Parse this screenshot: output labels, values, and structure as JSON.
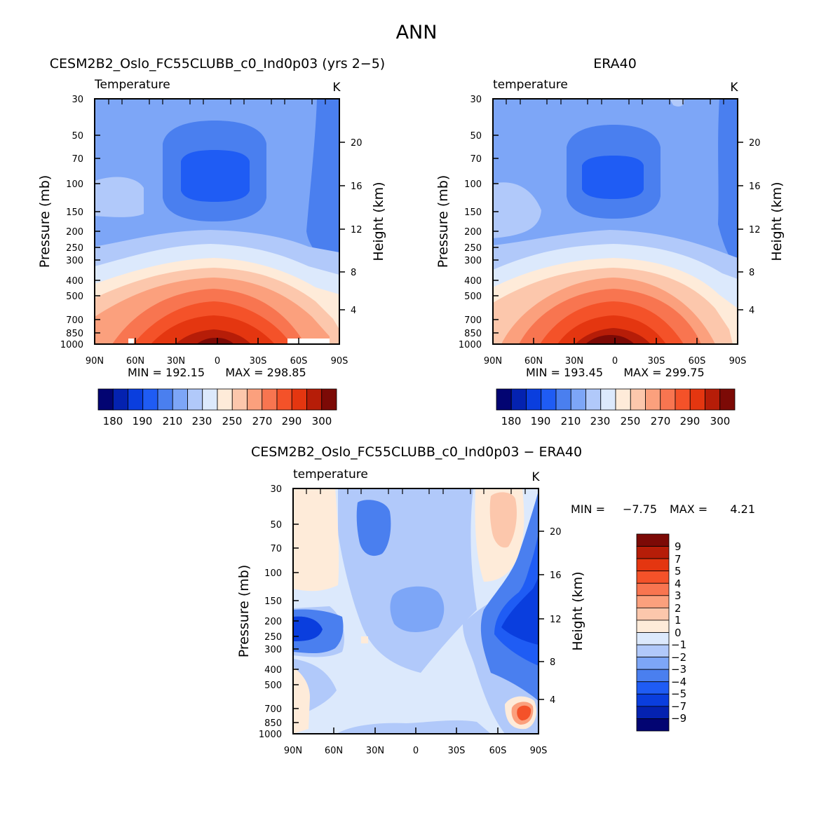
{
  "figure_title": "ANN",
  "chart_data": [
    {
      "type": "heatmap",
      "title": "CESM2B2_Oslo_FC55CLUBB_c0_Ind0p03 (yrs 2−5)",
      "variable": "Temperature",
      "units": "K",
      "xlabel": "",
      "ylabel": "Pressure (mb)",
      "ylabel_right": "Height (km)",
      "x_ticks": [
        "90N",
        "60N",
        "30N",
        "0",
        "30S",
        "60S",
        "90S"
      ],
      "y_ticks": [
        "30",
        "50",
        "70",
        "100",
        "150",
        "200",
        "250",
        "300",
        "400",
        "500",
        "700",
        "850",
        "1000"
      ],
      "height_ticks": [
        "20",
        "16",
        "12",
        "8",
        "4"
      ],
      "ylim": [
        1000,
        30
      ],
      "min_label": "MIN = 192.15",
      "max_label": "MAX = 298.85",
      "min": 192.15,
      "max": 298.85,
      "colorbar": {
        "levels": [
          180,
          190,
          200,
          210,
          220,
          230,
          240,
          250,
          260,
          270,
          280,
          290,
          300
        ],
        "tick_labels": [
          "180",
          "190",
          "210",
          "230",
          "250",
          "270",
          "290",
          "300"
        ],
        "colors": [
          "#020472",
          "#0422b0",
          "#0a3ede",
          "#1f5cf4",
          "#4a7fef",
          "#7da6f7",
          "#b1c9fa",
          "#dce9fc",
          "#feebd9",
          "#fcc7ac",
          "#fba07d",
          "#f87550",
          "#f45229",
          "#e43610",
          "#b61d08",
          "#7c0a06"
        ]
      }
    },
    {
      "type": "heatmap",
      "title": "ERA40",
      "variable": "temperature",
      "units": "K",
      "xlabel": "",
      "ylabel": "Pressure (mb)",
      "ylabel_right": "Height (km)",
      "x_ticks": [
        "90N",
        "60N",
        "30N",
        "0",
        "30S",
        "60S",
        "90S"
      ],
      "y_ticks": [
        "30",
        "50",
        "70",
        "100",
        "150",
        "200",
        "250",
        "300",
        "400",
        "500",
        "700",
        "850",
        "1000"
      ],
      "height_ticks": [
        "20",
        "16",
        "12",
        "8",
        "4"
      ],
      "ylim": [
        1000,
        30
      ],
      "min_label": "MIN = 193.45",
      "max_label": "MAX = 299.75",
      "min": 193.45,
      "max": 299.75,
      "colorbar": {
        "levels": [
          180,
          190,
          200,
          210,
          220,
          230,
          240,
          250,
          260,
          270,
          280,
          290,
          300
        ],
        "tick_labels": [
          "180",
          "190",
          "210",
          "230",
          "250",
          "270",
          "290",
          "300"
        ],
        "colors": [
          "#020472",
          "#0422b0",
          "#0a3ede",
          "#1f5cf4",
          "#4a7fef",
          "#7da6f7",
          "#b1c9fa",
          "#dce9fc",
          "#feebd9",
          "#fcc7ac",
          "#fba07d",
          "#f87550",
          "#f45229",
          "#e43610",
          "#b61d08",
          "#7c0a06"
        ]
      }
    },
    {
      "type": "heatmap",
      "title": "CESM2B2_Oslo_FC55CLUBB_c0_Ind0p03 − ERA40",
      "variable": "temperature",
      "units": "K",
      "xlabel": "",
      "ylabel": "Pressure (mb)",
      "ylabel_right": "Height (km)",
      "x_ticks": [
        "90N",
        "60N",
        "30N",
        "0",
        "30S",
        "60S",
        "90S"
      ],
      "y_ticks": [
        "30",
        "50",
        "70",
        "100",
        "150",
        "200",
        "250",
        "300",
        "400",
        "500",
        "700",
        "850",
        "1000"
      ],
      "height_ticks": [
        "20",
        "16",
        "12",
        "8",
        "4"
      ],
      "ylim": [
        1000,
        30
      ],
      "min_label": "MIN =",
      "min_value": "−7.75",
      "max_label": "MAX =",
      "max_value": "4.21",
      "min": -7.75,
      "max": 4.21,
      "colorbar": {
        "levels": [
          -9,
          -7,
          -5,
          -4,
          -3,
          -2,
          -1,
          0,
          1,
          2,
          3,
          4,
          5,
          7,
          9
        ],
        "tick_labels": [
          "9",
          "7",
          "5",
          "4",
          "3",
          "2",
          "1",
          "0",
          "−1",
          "−2",
          "−3",
          "−4",
          "−5",
          "−7",
          "−9"
        ],
        "colors": [
          "#7c0a06",
          "#b61d08",
          "#e43610",
          "#f45229",
          "#f87550",
          "#fba07d",
          "#fcc7ac",
          "#feebd9",
          "#dce9fc",
          "#b1c9fa",
          "#7da6f7",
          "#4a7fef",
          "#1f5cf4",
          "#0a3ede",
          "#0422b0",
          "#020472"
        ]
      }
    }
  ]
}
